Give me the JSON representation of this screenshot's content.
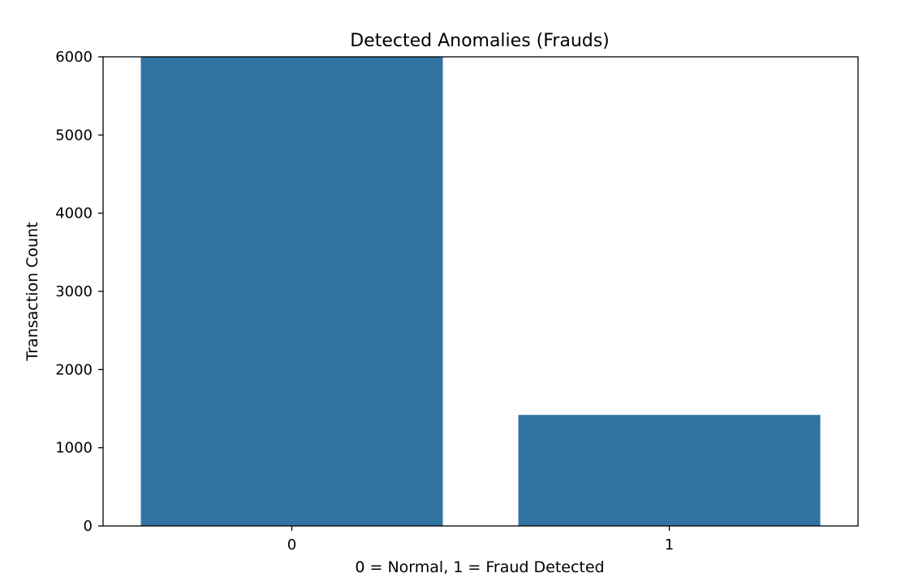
{
  "chart_data": {
    "type": "bar",
    "title": "Detected Anomalies (Frauds)",
    "xlabel": "0 = Normal, 1 = Fraud Detected",
    "ylabel": "Transaction Count",
    "categories": [
      "0",
      "1"
    ],
    "values": [
      6000,
      1420
    ],
    "ylim": [
      0,
      6000
    ],
    "yticks": [
      0,
      1000,
      2000,
      3000,
      4000,
      5000,
      6000
    ],
    "bar_color": "#3274a1",
    "grid": false,
    "legend": "none"
  }
}
